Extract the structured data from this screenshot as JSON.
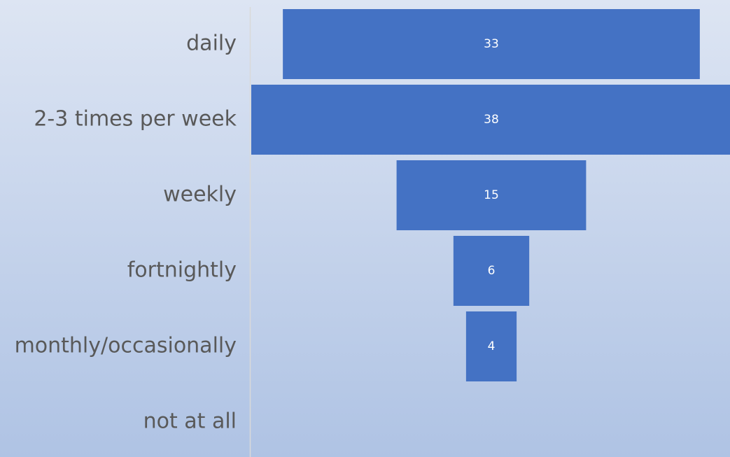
{
  "chart_data": {
    "type": "funnel",
    "categories": [
      "daily",
      "2-3 times per week",
      "weekly",
      "fortnightly",
      "monthly/occasionally",
      "not at all"
    ],
    "values": [
      33,
      38,
      15,
      6,
      4,
      null
    ],
    "color": "#4472c4"
  }
}
